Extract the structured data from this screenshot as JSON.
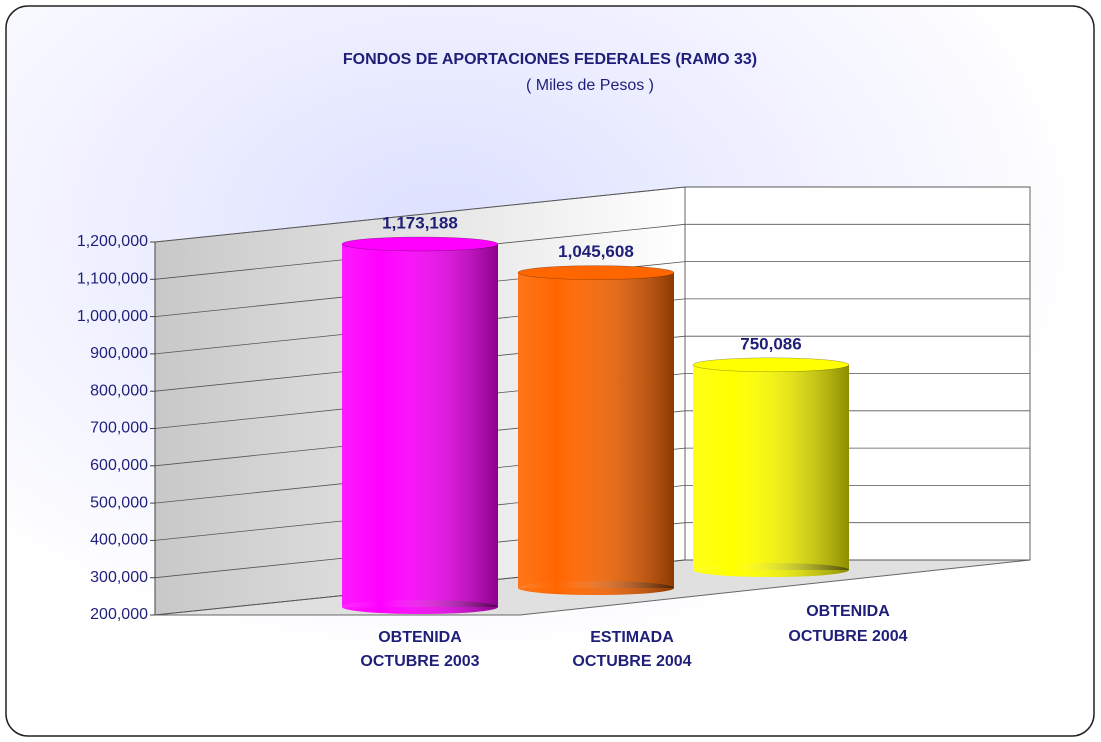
{
  "chart_data": {
    "type": "bar",
    "title": "FONDOS DE APORTACIONES FEDERALES (RAMO 33)",
    "subtitle": "( Miles de Pesos )",
    "categories": [
      [
        "OBTENIDA",
        "OCTUBRE 2003"
      ],
      [
        "ESTIMADA",
        "OCTUBRE 2004"
      ],
      [
        "OBTENIDA",
        "OCTUBRE 2004"
      ]
    ],
    "values": [
      1173188,
      1045608,
      750086
    ],
    "value_labels": [
      "1,173,188",
      "1,045,608",
      "750,086"
    ],
    "colors": [
      "#ff00ff",
      "#ff6600",
      "#ffff00"
    ],
    "ylim": [
      200000,
      1200000
    ],
    "yticks": [
      {
        "value": 200000,
        "label": "200,000"
      },
      {
        "value": 300000,
        "label": "300,000"
      },
      {
        "value": 400000,
        "label": "400,000"
      },
      {
        "value": 500000,
        "label": "500,000"
      },
      {
        "value": 600000,
        "label": "600,000"
      },
      {
        "value": 700000,
        "label": "700,000"
      },
      {
        "value": 800000,
        "label": "800,000"
      },
      {
        "value": 900000,
        "label": "900,000"
      },
      {
        "value": 1000000,
        "label": "1,000,000"
      },
      {
        "value": 1100000,
        "label": "1,100,000"
      },
      {
        "value": 1200000,
        "label": "1,200,000"
      }
    ],
    "grid": true
  }
}
